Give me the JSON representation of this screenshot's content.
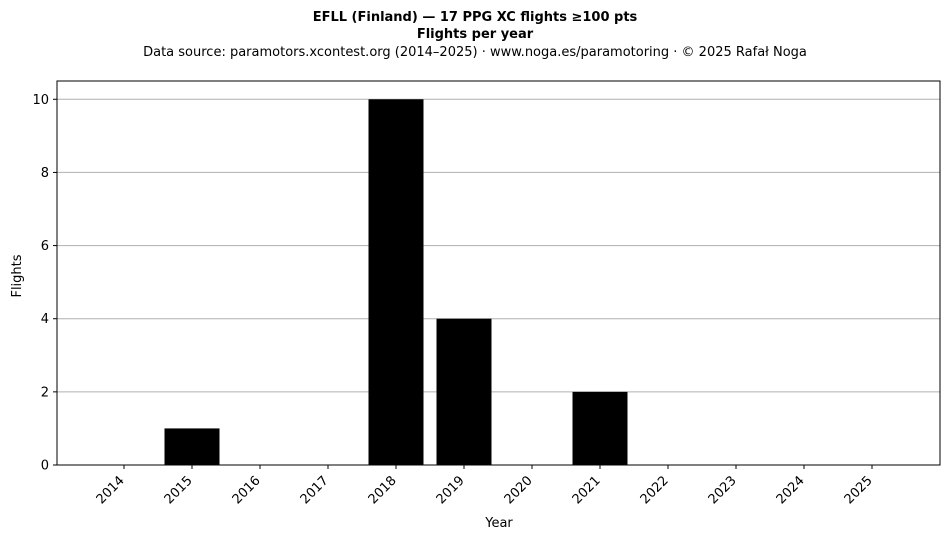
{
  "chart_data": {
    "type": "bar",
    "title": "EFLL (Finland)  —  17 PPG XC flights ≥100 pts",
    "title_line2": "Flights per year",
    "subtitle": "Data source: paramotors.xcontest.org (2014–2025)  ·  www.noga.es/paramotoring  ·  © 2025 Rafał Noga",
    "xlabel": "Year",
    "ylabel": "Flights",
    "categories": [
      "2014",
      "2015",
      "2016",
      "2017",
      "2018",
      "2019",
      "2020",
      "2021",
      "2022",
      "2023",
      "2024",
      "2025"
    ],
    "values": [
      0,
      1,
      0,
      0,
      10,
      4,
      0,
      2,
      0,
      0,
      0,
      0
    ],
    "ylim": [
      0,
      10.5
    ],
    "yticks": [
      0,
      2,
      4,
      6,
      8,
      10
    ],
    "grid": "horizontal",
    "legend": "none",
    "bar_color": "#000000",
    "grid_color": "#b0b0b0"
  }
}
